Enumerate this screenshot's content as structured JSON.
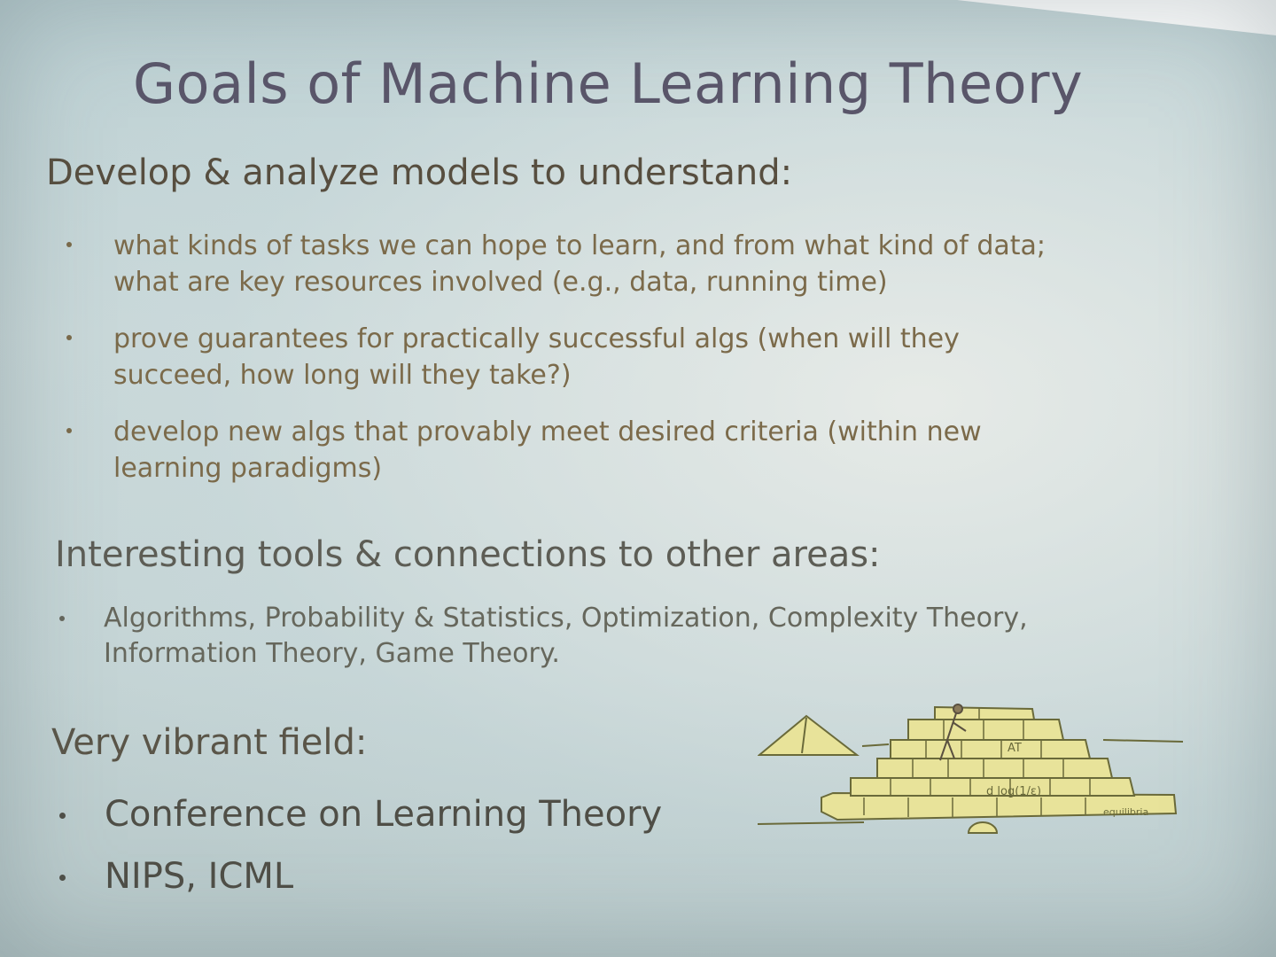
{
  "slide": {
    "title": "Goals of Machine Learning Theory",
    "section1": {
      "heading": "Develop & analyze models to understand:",
      "bullets": [
        {
          "line1": "what kinds of tasks we can hope to learn, and from what kind of data;",
          "line2": "what are key resources involved (e.g., data, running time)"
        },
        {
          "line1": "prove guarantees for practically successful algs (when will they",
          "line2": "succeed, how long will they take?)"
        },
        {
          "line1": "develop new algs that provably meet desired criteria  (within new",
          "line2": "learning paradigms)"
        }
      ]
    },
    "section2": {
      "heading": "Interesting  tools & connections to other areas:",
      "bullets": [
        {
          "line1": "Algorithms, Probability & Statistics, Optimization, Complexity Theory,",
          "line2": "Information Theory, Game Theory."
        }
      ]
    },
    "section3": {
      "heading": "Very vibrant field:",
      "bullets": [
        {
          "text": "Conference on Learning Theory"
        },
        {
          "text": "NIPS, ICML"
        }
      ]
    },
    "illustration": {
      "description_icon": "pyramid-construction-icon",
      "labels": [
        "AT",
        "d log(1/ε)",
        "equilibria"
      ]
    }
  },
  "colors": {
    "title": "#5a566a",
    "heading": "#574e3f",
    "bullet_text": "#7b6a4a",
    "pyramid_fill": "#e8e39a",
    "pyramid_stroke": "#6a6a3a"
  }
}
